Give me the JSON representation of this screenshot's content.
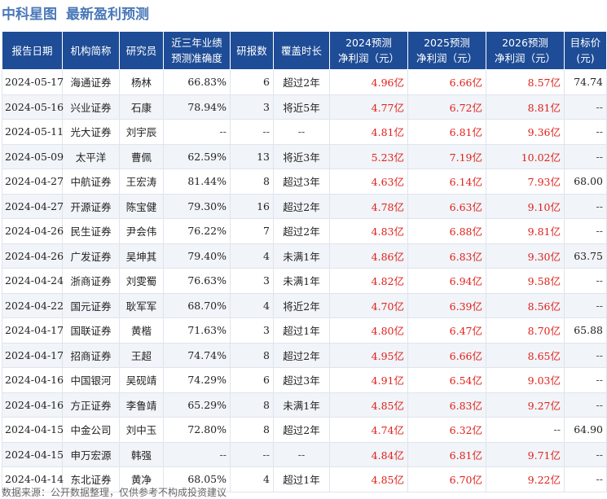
{
  "header": {
    "brand": "中科星图",
    "title": "最新盈利预测"
  },
  "table": {
    "columns": [
      "报告日期",
      "机构简称",
      "研究员",
      "近三年业绩\n预测准确度",
      "研报数",
      "覆盖时长",
      "2024预测\n净利润（元）",
      "2025预测\n净利润（元）",
      "2026预测\n净利润（元）",
      "目标价\n(元)"
    ],
    "rows": [
      {
        "date": "2024-05-17",
        "institution": "海通证券",
        "researcher": "杨林",
        "accuracy": "66.83%",
        "reports": "6",
        "coverage": "超过2年",
        "p2024": "4.96亿",
        "p2025": "6.66亿",
        "p2026": "8.57亿",
        "target": "74.74"
      },
      {
        "date": "2024-05-16",
        "institution": "兴业证券",
        "researcher": "石康",
        "accuracy": "78.94%",
        "reports": "3",
        "coverage": "将近5年",
        "p2024": "4.77亿",
        "p2025": "6.72亿",
        "p2026": "8.81亿",
        "target": "--"
      },
      {
        "date": "2024-05-11",
        "institution": "光大证券",
        "researcher": "刘宇辰",
        "accuracy": "--",
        "reports": "--",
        "coverage": "--",
        "p2024": "4.81亿",
        "p2025": "6.81亿",
        "p2026": "9.36亿",
        "target": "--"
      },
      {
        "date": "2024-05-09",
        "institution": "太平洋",
        "researcher": "曹佩",
        "accuracy": "62.59%",
        "reports": "13",
        "coverage": "将近3年",
        "p2024": "5.23亿",
        "p2025": "7.19亿",
        "p2026": "10.02亿",
        "target": "--"
      },
      {
        "date": "2024-04-27",
        "institution": "中航证券",
        "researcher": "王宏涛",
        "accuracy": "81.44%",
        "reports": "8",
        "coverage": "超过3年",
        "p2024": "4.63亿",
        "p2025": "6.14亿",
        "p2026": "7.93亿",
        "target": "68.00"
      },
      {
        "date": "2024-04-27",
        "institution": "开源证券",
        "researcher": "陈宝健",
        "accuracy": "79.30%",
        "reports": "16",
        "coverage": "超过2年",
        "p2024": "4.78亿",
        "p2025": "6.63亿",
        "p2026": "9.10亿",
        "target": "--"
      },
      {
        "date": "2024-04-26",
        "institution": "民生证券",
        "researcher": "尹会伟",
        "accuracy": "76.22%",
        "reports": "7",
        "coverage": "超过2年",
        "p2024": "4.83亿",
        "p2025": "6.88亿",
        "p2026": "9.81亿",
        "target": "--"
      },
      {
        "date": "2024-04-26",
        "institution": "广发证券",
        "researcher": "吴坤其",
        "accuracy": "79.40%",
        "reports": "4",
        "coverage": "未满1年",
        "p2024": "4.86亿",
        "p2025": "6.83亿",
        "p2026": "9.30亿",
        "target": "63.75"
      },
      {
        "date": "2024-04-24",
        "institution": "浙商证券",
        "researcher": "刘雯蜀",
        "accuracy": "76.63%",
        "reports": "3",
        "coverage": "未满1年",
        "p2024": "4.82亿",
        "p2025": "6.94亿",
        "p2026": "9.58亿",
        "target": "--"
      },
      {
        "date": "2024-04-22",
        "institution": "国元证券",
        "researcher": "耿军军",
        "accuracy": "68.70%",
        "reports": "4",
        "coverage": "将近2年",
        "p2024": "4.70亿",
        "p2025": "6.39亿",
        "p2026": "8.56亿",
        "target": "--"
      },
      {
        "date": "2024-04-17",
        "institution": "国联证券",
        "researcher": "黄楷",
        "accuracy": "71.63%",
        "reports": "3",
        "coverage": "超过1年",
        "p2024": "4.80亿",
        "p2025": "6.47亿",
        "p2026": "8.70亿",
        "target": "65.88"
      },
      {
        "date": "2024-04-17",
        "institution": "招商证券",
        "researcher": "王超",
        "accuracy": "74.74%",
        "reports": "8",
        "coverage": "超过2年",
        "p2024": "4.95亿",
        "p2025": "6.66亿",
        "p2026": "8.65亿",
        "target": "--"
      },
      {
        "date": "2024-04-16",
        "institution": "中国银河",
        "researcher": "吴砚靖",
        "accuracy": "74.29%",
        "reports": "6",
        "coverage": "超过3年",
        "p2024": "4.91亿",
        "p2025": "6.54亿",
        "p2026": "9.03亿",
        "target": "--"
      },
      {
        "date": "2024-04-16",
        "institution": "方正证券",
        "researcher": "李鲁靖",
        "accuracy": "65.29%",
        "reports": "8",
        "coverage": "未满1年",
        "p2024": "4.85亿",
        "p2025": "6.83亿",
        "p2026": "9.27亿",
        "target": "--"
      },
      {
        "date": "2024-04-15",
        "institution": "中金公司",
        "researcher": "刘中玉",
        "accuracy": "72.80%",
        "reports": "8",
        "coverage": "超过2年",
        "p2024": "4.74亿",
        "p2025": "6.32亿",
        "p2026": "--",
        "target": "64.90"
      },
      {
        "date": "2024-04-15",
        "institution": "申万宏源",
        "researcher": "韩强",
        "accuracy": "--",
        "reports": "--",
        "coverage": "--",
        "p2024": "4.84亿",
        "p2025": "6.81亿",
        "p2026": "9.71亿",
        "target": "--"
      },
      {
        "date": "2024-04-14",
        "institution": "东北证券",
        "researcher": "黄净",
        "accuracy": "68.05%",
        "reports": "4",
        "coverage": "超过1年",
        "p2024": "4.85亿",
        "p2025": "6.70亿",
        "p2026": "9.22亿",
        "target": "--"
      }
    ]
  },
  "footer": {
    "source": "数据来源：公开数据整理，仅供参考不构成投资建议"
  }
}
